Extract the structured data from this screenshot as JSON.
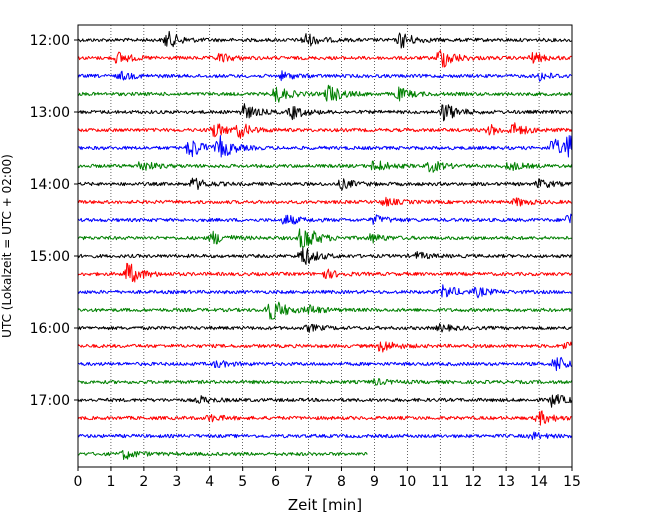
{
  "chart_data": {
    "type": "line",
    "title": "",
    "xlabel": "Zeit  [min]",
    "ylabel": "UTC (Lokalzeit = UTC + 02:00)",
    "xlim": [
      0,
      15
    ],
    "x_ticks": [
      0,
      1,
      2,
      3,
      4,
      5,
      6,
      7,
      8,
      9,
      10,
      11,
      12,
      13,
      14,
      15
    ],
    "x_grid": "dotted",
    "y_tick_labels": [
      "12:00",
      "13:00",
      "14:00",
      "15:00",
      "16:00",
      "17:00"
    ],
    "row_interval_minutes": 15,
    "colors": [
      "#000000",
      "#ff0000",
      "#0000ff",
      "#008000"
    ],
    "traces": [
      {
        "start": "12:00",
        "color": "#000000",
        "end_min": 15,
        "events": [
          {
            "t": 2.7,
            "amp": 1.6
          },
          {
            "t": 6.9,
            "amp": 1.3
          },
          {
            "t": 9.8,
            "amp": 1.5
          }
        ]
      },
      {
        "start": "12:15",
        "color": "#ff0000",
        "end_min": 15,
        "events": [
          {
            "t": 1.2,
            "amp": 1.1
          },
          {
            "t": 4.3,
            "amp": 0.8
          },
          {
            "t": 11.0,
            "amp": 2.2
          },
          {
            "t": 13.8,
            "amp": 0.9
          }
        ]
      },
      {
        "start": "12:30",
        "color": "#0000ff",
        "end_min": 15,
        "events": [
          {
            "t": 1.3,
            "amp": 0.7
          },
          {
            "t": 6.2,
            "amp": 0.7
          },
          {
            "t": 14.0,
            "amp": 0.8
          }
        ]
      },
      {
        "start": "12:45",
        "color": "#008000",
        "end_min": 15,
        "events": [
          {
            "t": 6.0,
            "amp": 1.6
          },
          {
            "t": 7.6,
            "amp": 1.8
          },
          {
            "t": 9.7,
            "amp": 1.2
          }
        ]
      },
      {
        "start": "13:00",
        "color": "#000000",
        "end_min": 15,
        "events": [
          {
            "t": 5.0,
            "amp": 1.5
          },
          {
            "t": 6.5,
            "amp": 1.2
          },
          {
            "t": 11.1,
            "amp": 1.8
          }
        ]
      },
      {
        "start": "13:15",
        "color": "#ff0000",
        "end_min": 15,
        "events": [
          {
            "t": 4.1,
            "amp": 1.5
          },
          {
            "t": 4.9,
            "amp": 1.2
          },
          {
            "t": 12.5,
            "amp": 0.9
          },
          {
            "t": 13.2,
            "amp": 1.2
          }
        ]
      },
      {
        "start": "13:30",
        "color": "#0000ff",
        "end_min": 15,
        "events": [
          {
            "t": 3.4,
            "amp": 2.0
          },
          {
            "t": 4.3,
            "amp": 2.0
          },
          {
            "t": 14.4,
            "amp": 1.8
          },
          {
            "t": 14.9,
            "amp": 2.4
          }
        ]
      },
      {
        "start": "13:45",
        "color": "#008000",
        "end_min": 15,
        "events": [
          {
            "t": 1.9,
            "amp": 1.0
          },
          {
            "t": 9.0,
            "amp": 1.2
          },
          {
            "t": 10.7,
            "amp": 1.1
          },
          {
            "t": 13.1,
            "amp": 0.8
          }
        ]
      },
      {
        "start": "14:00",
        "color": "#000000",
        "end_min": 15,
        "events": [
          {
            "t": 3.5,
            "amp": 1.1
          },
          {
            "t": 8.0,
            "amp": 0.9
          },
          {
            "t": 14.0,
            "amp": 0.8
          }
        ]
      },
      {
        "start": "14:15",
        "color": "#ff0000",
        "end_min": 15,
        "events": [
          {
            "t": 9.3,
            "amp": 0.7
          },
          {
            "t": 13.3,
            "amp": 0.7
          }
        ]
      },
      {
        "start": "14:30",
        "color": "#0000ff",
        "end_min": 15,
        "events": [
          {
            "t": 6.3,
            "amp": 1.0
          },
          {
            "t": 9.0,
            "amp": 0.8
          },
          {
            "t": 14.9,
            "amp": 1.4
          }
        ]
      },
      {
        "start": "14:45",
        "color": "#008000",
        "end_min": 15,
        "events": [
          {
            "t": 4.1,
            "amp": 1.2
          },
          {
            "t": 6.8,
            "amp": 3.0
          },
          {
            "t": 8.9,
            "amp": 0.8
          }
        ]
      },
      {
        "start": "15:00",
        "color": "#000000",
        "end_min": 15,
        "events": [
          {
            "t": 6.8,
            "amp": 2.0
          },
          {
            "t": 10.3,
            "amp": 0.6
          }
        ]
      },
      {
        "start": "15:15",
        "color": "#ff0000",
        "end_min": 15,
        "events": [
          {
            "t": 1.5,
            "amp": 2.2
          },
          {
            "t": 7.5,
            "amp": 0.8
          }
        ]
      },
      {
        "start": "15:30",
        "color": "#0000ff",
        "end_min": 15,
        "events": [
          {
            "t": 11.1,
            "amp": 1.3
          },
          {
            "t": 12.1,
            "amp": 0.8
          }
        ]
      },
      {
        "start": "15:45",
        "color": "#008000",
        "end_min": 15,
        "events": [
          {
            "t": 5.8,
            "amp": 3.0
          },
          {
            "t": 7.0,
            "amp": 0.8
          }
        ]
      },
      {
        "start": "16:00",
        "color": "#000000",
        "end_min": 15,
        "events": [
          {
            "t": 7.0,
            "amp": 0.6
          },
          {
            "t": 11.0,
            "amp": 0.6
          }
        ]
      },
      {
        "start": "16:15",
        "color": "#ff0000",
        "end_min": 15,
        "events": [
          {
            "t": 9.2,
            "amp": 1.2
          },
          {
            "t": 14.8,
            "amp": 0.7
          }
        ]
      },
      {
        "start": "16:30",
        "color": "#0000ff",
        "end_min": 15,
        "events": [
          {
            "t": 4.2,
            "amp": 0.6
          },
          {
            "t": 14.5,
            "amp": 1.6
          }
        ]
      },
      {
        "start": "16:45",
        "color": "#008000",
        "end_min": 15,
        "events": [
          {
            "t": 9.0,
            "amp": 0.5
          }
        ]
      },
      {
        "start": "17:00",
        "color": "#000000",
        "end_min": 15,
        "events": [
          {
            "t": 3.7,
            "amp": 0.6
          },
          {
            "t": 14.4,
            "amp": 1.2
          }
        ]
      },
      {
        "start": "17:15",
        "color": "#ff0000",
        "end_min": 15,
        "events": [
          {
            "t": 4.0,
            "amp": 0.6
          },
          {
            "t": 14.0,
            "amp": 1.3
          }
        ]
      },
      {
        "start": "17:30",
        "color": "#0000ff",
        "end_min": 15,
        "events": [
          {
            "t": 13.8,
            "amp": 0.6
          }
        ]
      },
      {
        "start": "17:45",
        "color": "#008000",
        "end_min": 8.8,
        "events": [
          {
            "t": 1.4,
            "amp": 0.9
          }
        ]
      }
    ]
  }
}
